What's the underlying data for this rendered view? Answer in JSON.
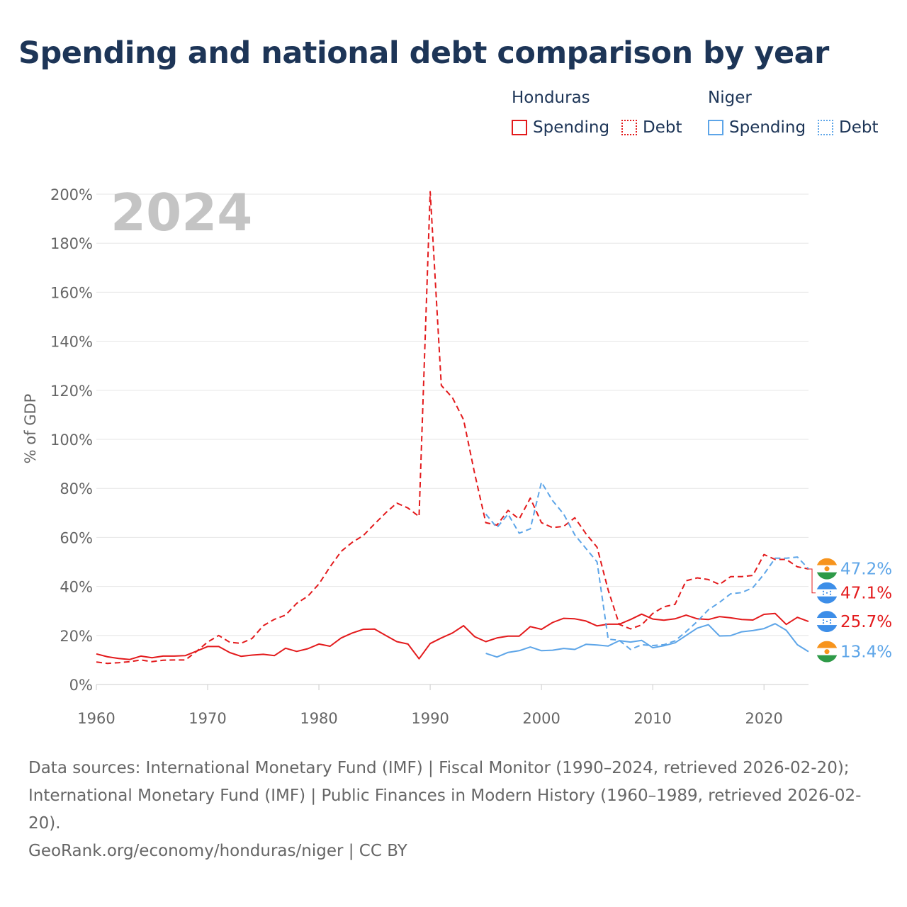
{
  "title": "Spending and national debt comparison by year",
  "legend": {
    "groups": [
      {
        "name": "Honduras",
        "color": "#e31a1c",
        "items": [
          {
            "label": "Spending",
            "style": "solid"
          },
          {
            "label": "Debt",
            "style": "dotted"
          }
        ]
      },
      {
        "name": "Niger",
        "color": "#5da5e8",
        "items": [
          {
            "label": "Spending",
            "style": "solid"
          },
          {
            "label": "Debt",
            "style": "dotted"
          }
        ]
      }
    ]
  },
  "footer": {
    "sources": "Data sources: International Monetary Fund (IMF) | Fiscal Monitor (1990–2024, retrieved 2026-02-20); International Monetary Fund (IMF) | Public Finances in Modern History (1960–1989, retrieved 2026-02-20).",
    "credit": "GeoRank.org/economy/honduras/niger | CC BY"
  },
  "chart_data": {
    "type": "line",
    "title": "Spending and national debt comparison by year",
    "year_label": "2024",
    "xlabel": "",
    "ylabel": "% of GDP",
    "xlim": [
      1960,
      2024
    ],
    "ylim": [
      0,
      200
    ],
    "x_ticks": [
      1960,
      1970,
      1980,
      1990,
      2000,
      2010,
      2020
    ],
    "y_ticks": [
      0,
      20,
      40,
      60,
      80,
      100,
      120,
      140,
      160,
      180,
      200
    ],
    "y_tick_suffix": "%",
    "grid": true,
    "series": [
      {
        "name": "Honduras Spending",
        "country": "Honduras",
        "metric": "Spending",
        "color": "#e31a1c",
        "dashed": false,
        "start": 1960,
        "values": [
          12.5,
          11.3,
          10.6,
          10.2,
          11.6,
          10.9,
          11.6,
          11.6,
          11.8,
          13.6,
          15.5,
          15.5,
          13,
          11.5,
          12,
          12.3,
          11.8,
          14.8,
          13.5,
          14.6,
          16.5,
          15.6,
          19,
          21,
          22.5,
          22.6,
          20,
          17.5,
          16.5,
          10.5,
          16.7,
          19,
          21,
          24,
          19.5,
          17.5,
          19,
          19.7,
          19.7,
          23.6,
          22.5,
          25.3,
          27,
          26.8,
          25.9,
          23.9,
          24.6,
          24.6,
          26.5,
          28.7,
          26.7,
          26.2,
          26.8,
          28.3,
          26.8,
          26.5,
          27.7,
          27.2,
          26.5,
          26.3,
          28.6,
          29,
          24.5,
          27.4,
          25.7
        ],
        "end_label": "25.7%",
        "end_flag": "honduras"
      },
      {
        "name": "Honduras Debt",
        "country": "Honduras",
        "metric": "Debt",
        "color": "#e31a1c",
        "dashed": true,
        "start": 1960,
        "values": [
          9.2,
          8.6,
          8.9,
          9.3,
          10,
          9.3,
          9.9,
          10,
          10,
          13.5,
          17.3,
          20,
          17.2,
          16.8,
          18.8,
          24,
          26.6,
          28.3,
          33.1,
          36,
          41,
          48,
          54.3,
          58,
          60.8,
          65.5,
          70,
          74,
          72,
          68.5,
          201,
          122,
          117,
          108,
          86,
          66,
          65,
          71,
          67.5,
          76,
          66,
          64,
          64.5,
          68,
          61.5,
          56,
          38.5,
          24.5,
          22.7,
          24.3,
          29,
          31.7,
          32.7,
          42.3,
          43.5,
          42.8,
          40.8,
          44,
          44,
          44.5,
          53,
          51,
          51,
          48,
          47.1
        ],
        "end_label": "47.1%",
        "end_flag": "honduras"
      },
      {
        "name": "Niger Spending",
        "country": "Niger",
        "metric": "Spending",
        "color": "#5da5e8",
        "dashed": false,
        "start": 1995,
        "values": [
          12.7,
          11.2,
          13.1,
          13.8,
          15.3,
          13.8,
          14,
          14.7,
          14.3,
          16.4,
          16.1,
          15.7,
          17.9,
          17.3,
          18,
          15,
          15.8,
          17,
          20,
          23,
          24.4,
          19.8,
          19.9,
          21.5,
          22,
          22.8,
          24.8,
          22.1,
          16.2,
          13.4
        ],
        "end_label": "13.4%",
        "end_flag": "niger"
      },
      {
        "name": "Niger Debt",
        "country": "Niger",
        "metric": "Debt",
        "color": "#5da5e8",
        "dashed": true,
        "start": 1995,
        "values": [
          69.5,
          64,
          69.5,
          61.7,
          63.5,
          82.5,
          75,
          69.5,
          61,
          55.5,
          50,
          18.5,
          18,
          14.3,
          16.2,
          15.9,
          16.2,
          17.8,
          21.6,
          25.7,
          30.5,
          33.5,
          37,
          37.5,
          39.5,
          45,
          51.5,
          51.5,
          52,
          47.2
        ],
        "end_label": "47.2%",
        "end_flag": "niger"
      }
    ]
  }
}
